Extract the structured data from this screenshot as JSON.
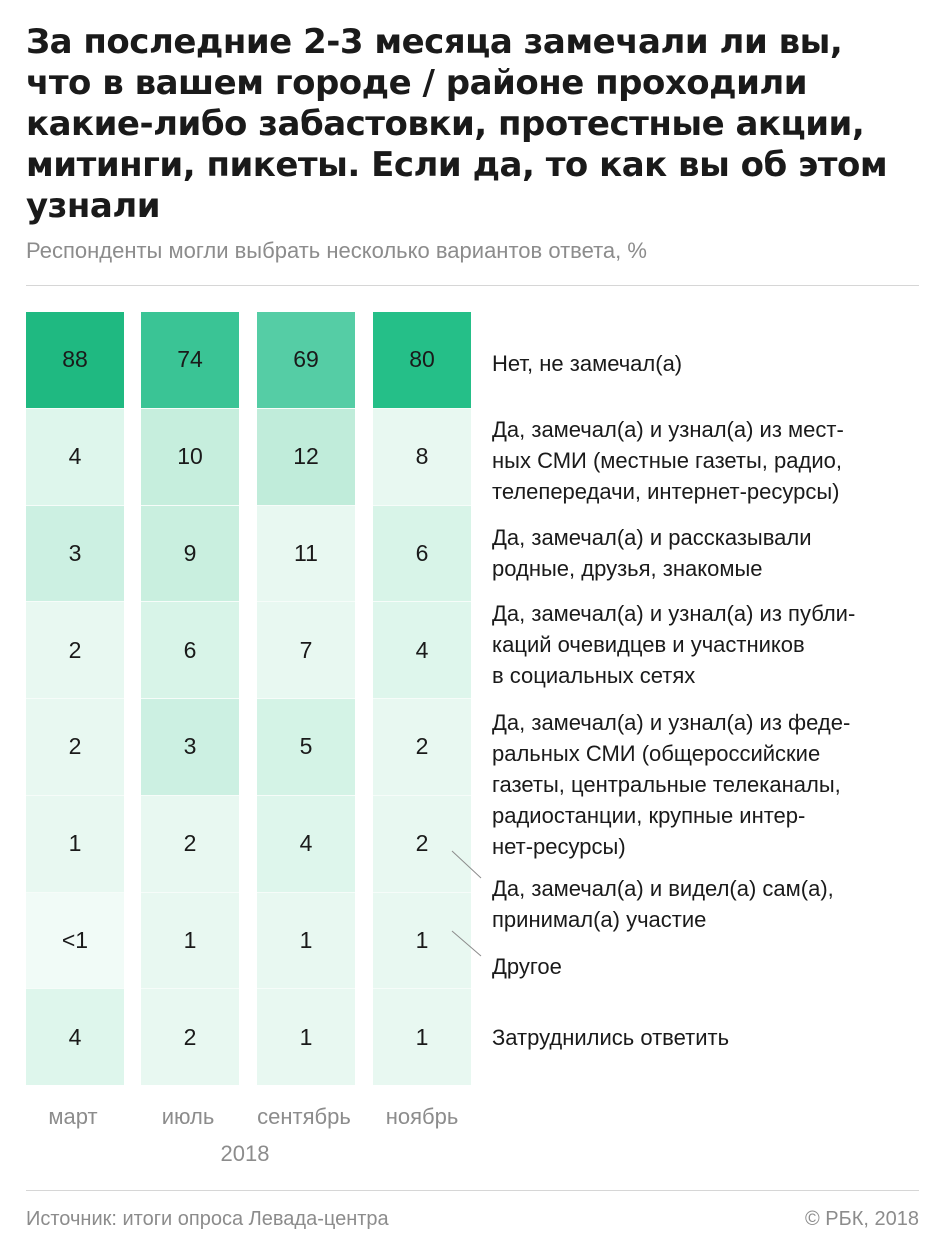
{
  "title_lines": [
    "За последние 2-3 месяца замечали ли вы,",
    "что в вашем городе / районе проходили",
    "какие-либо забастовки, протестные акции,",
    "митинги, пикеты. Если да, то как вы об этом",
    "узнали"
  ],
  "subtitle": "Респонденты могли выбрать несколько вариантов ответа, %",
  "chart_data": {
    "type": "heatmap",
    "categories": [
      "март",
      "июль",
      "сентябрь",
      "ноябрь"
    ],
    "year_label": "2018",
    "rows": [
      {
        "label_lines": [
          "Нет, не замечал(а)"
        ],
        "values": [
          "88",
          "74",
          "69",
          "80"
        ]
      },
      {
        "label_lines": [
          "Да, замечал(а) и узнал(а) из мест-",
          "ных СМИ (местные газеты, радио,",
          "телепередачи, интернет-ресурсы)"
        ],
        "values": [
          "4",
          "10",
          "12",
          "8"
        ]
      },
      {
        "label_lines": [
          "Да, замечал(а) и рассказывали",
          "родные, друзья, знакомые"
        ],
        "values": [
          "3",
          "9",
          "11",
          "6"
        ]
      },
      {
        "label_lines": [
          "Да, замечал(а) и узнал(а) из публи-",
          "каций очевидцев и участников",
          "в социальных сетях"
        ],
        "values": [
          "2",
          "6",
          "7",
          "4"
        ]
      },
      {
        "label_lines": [
          "Да, замечал(а) и узнал(а) из феде-",
          "ральных СМИ (общероссийские",
          "газеты, центральные телеканалы,",
          "радиостанции, крупные интер-",
          "нет-ресурсы)"
        ],
        "values": [
          "2",
          "3",
          "5",
          "2"
        ]
      },
      {
        "label_lines": [
          "Да, замечал(а) и видел(а) сам(а),",
          "принимал(а) участие"
        ],
        "values": [
          "1",
          "2",
          "4",
          "2"
        ]
      },
      {
        "label_lines": [
          "Другое"
        ],
        "values": [
          "<1",
          "1",
          "1",
          "1"
        ]
      },
      {
        "label_lines": [
          "Затруднились ответить"
        ],
        "values": [
          "4",
          "2",
          "1",
          "1"
        ]
      }
    ],
    "colors": {
      "top_row": [
        "#1fb981",
        "#3ac495",
        "#55cda5",
        "#25bf88"
      ],
      "body": {
        "3": "#ccf0e2",
        "4": "#def6ec",
        "5": "#d4f3e6",
        "6": "#d8f4e8",
        "9": "#c9efdf",
        "10": "#c6eedd",
        "12": "#c0ecda"
      }
    }
  },
  "footer": {
    "source": "Источник: итоги опроса Левада-центра",
    "copyright": "© РБК, 2018"
  }
}
